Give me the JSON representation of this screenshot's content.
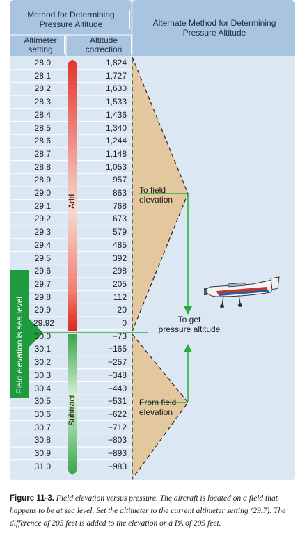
{
  "header": {
    "left_title": "Method for Determining Pressure Altitude",
    "col_setting": "Altimeter setting",
    "col_correction": "Altitude correction",
    "right_title": "Alternate Method for Determining Pressure Altitude"
  },
  "table": {
    "rows": [
      {
        "setting": "28.0",
        "correction": "1,824"
      },
      {
        "setting": "28.1",
        "correction": "1,727"
      },
      {
        "setting": "28.2",
        "correction": "1,630"
      },
      {
        "setting": "28.3",
        "correction": "1,533"
      },
      {
        "setting": "28.4",
        "correction": "1,436"
      },
      {
        "setting": "28.5",
        "correction": "1,340"
      },
      {
        "setting": "28.6",
        "correction": "1,244"
      },
      {
        "setting": "28.7",
        "correction": "1,148"
      },
      {
        "setting": "28.8",
        "correction": "1,053"
      },
      {
        "setting": "28.9",
        "correction": "957"
      },
      {
        "setting": "29.0",
        "correction": "863"
      },
      {
        "setting": "29.1",
        "correction": "768"
      },
      {
        "setting": "29.2",
        "correction": "673"
      },
      {
        "setting": "29.3",
        "correction": "579"
      },
      {
        "setting": "29.4",
        "correction": "485"
      },
      {
        "setting": "29.5",
        "correction": "392"
      },
      {
        "setting": "29.6",
        "correction": "298"
      },
      {
        "setting": "29.7",
        "correction": "205"
      },
      {
        "setting": "29.8",
        "correction": "112"
      },
      {
        "setting": "29.9",
        "correction": "20"
      },
      {
        "setting": "29.92",
        "correction": "0"
      },
      {
        "setting": "30.0",
        "correction": "−73"
      },
      {
        "setting": "30.1",
        "correction": "−165"
      },
      {
        "setting": "30.2",
        "correction": "−257"
      },
      {
        "setting": "30.3",
        "correction": "−348"
      },
      {
        "setting": "30.4",
        "correction": "−440"
      },
      {
        "setting": "30.5",
        "correction": "−531"
      },
      {
        "setting": "30.6",
        "correction": "−622"
      },
      {
        "setting": "30.7",
        "correction": "−712"
      },
      {
        "setting": "30.8",
        "correction": "−803"
      },
      {
        "setting": "30.9",
        "correction": "−893"
      },
      {
        "setting": "31.0",
        "correction": "−983"
      }
    ],
    "add_label": "Add",
    "subtract_label": "Subtract",
    "sea_level_label": "Field elevation is sea level"
  },
  "annotations": {
    "to_field_elevation": [
      "To field",
      "elevation"
    ],
    "to_get_pressure_altitude": [
      "To get",
      "pressure altitude"
    ],
    "from_field_elevation": [
      "From field",
      "elevation"
    ]
  },
  "caption": {
    "label": "Figure 11-3.",
    "text": "Field elevation versus pressure. The aircraft is located on a field that happens to be at sea level. Set the altimeter to the current altimeter setting (29.7). The difference of 205 feet is added to the elevation or a PA of 205 feet."
  },
  "colors": {
    "header_blue": "#a9c4df",
    "table_blue": "#dbe8f4",
    "triangle_tan": "#e3c79f",
    "add_red": "#e2342b",
    "subtract_green": "#3aa64a",
    "arrow_green": "#2eaa3c",
    "label_green": "#1f9a3c"
  }
}
